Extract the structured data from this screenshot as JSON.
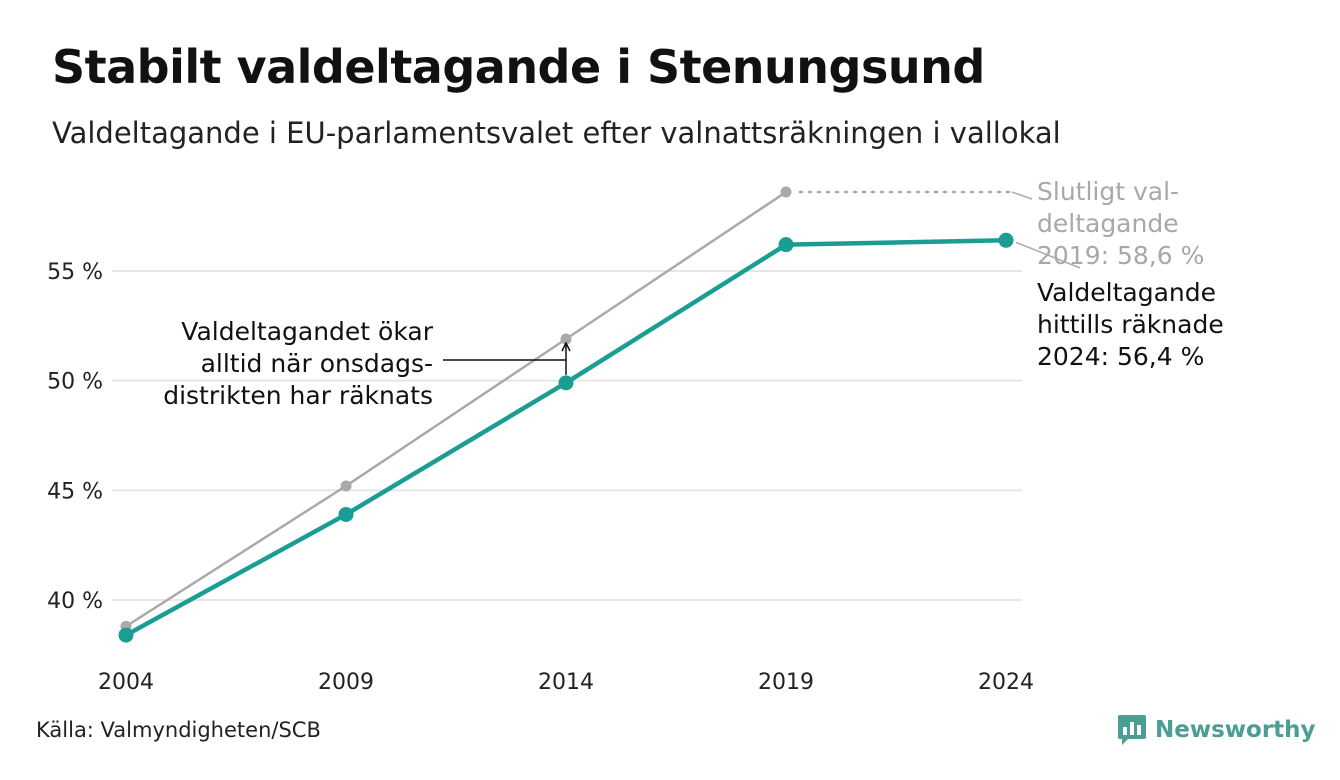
{
  "header": {
    "title": "Stabilt valdeltagande i Stenungsund",
    "subtitle": "Valdeltagande i EU-parlamentsvalet efter valnattsräkningen i vallokal"
  },
  "footer": {
    "source": "Källa: Valmyndigheten/SCB",
    "brand": "Newsworthy",
    "brand_icon": "bar-chart-speech-bubble-icon"
  },
  "colors": {
    "final": "#aaaaaa",
    "counted": "#1a9e94",
    "grid": "#e6e6e6",
    "brand": "#4a9e93"
  },
  "chart_data": {
    "type": "line",
    "title": "Stabilt valdeltagande i Stenungsund",
    "subtitle": "Valdeltagande i EU-parlamentsvalet efter valnattsräkningen i vallokal",
    "x": [
      2004,
      2009,
      2014,
      2019,
      2024
    ],
    "xticks": [
      "2004",
      "2009",
      "2014",
      "2019",
      "2024"
    ],
    "ylim": [
      38,
      58.6
    ],
    "yticks": [
      40,
      45,
      50,
      55
    ],
    "ytick_labels": [
      "40 %",
      "45 %",
      "50 %",
      "55 %"
    ],
    "grid": true,
    "series": [
      {
        "key": "final",
        "values": [
          38.8,
          45.2,
          51.9,
          58.6,
          null
        ]
      },
      {
        "key": "counted",
        "values": [
          38.4,
          43.9,
          49.9,
          56.2,
          56.4
        ]
      }
    ],
    "annotations": {
      "final_label": [
        "Slutligt val-",
        "deltagande",
        "2019: 58,6 %"
      ],
      "counted_label": [
        "Valdeltagande",
        "hittills räknade",
        "2024: 56,4 %"
      ],
      "note": [
        "Valdeltagandet ökar",
        "alltid när onsdags-",
        "distrikten har räknats"
      ]
    }
  }
}
